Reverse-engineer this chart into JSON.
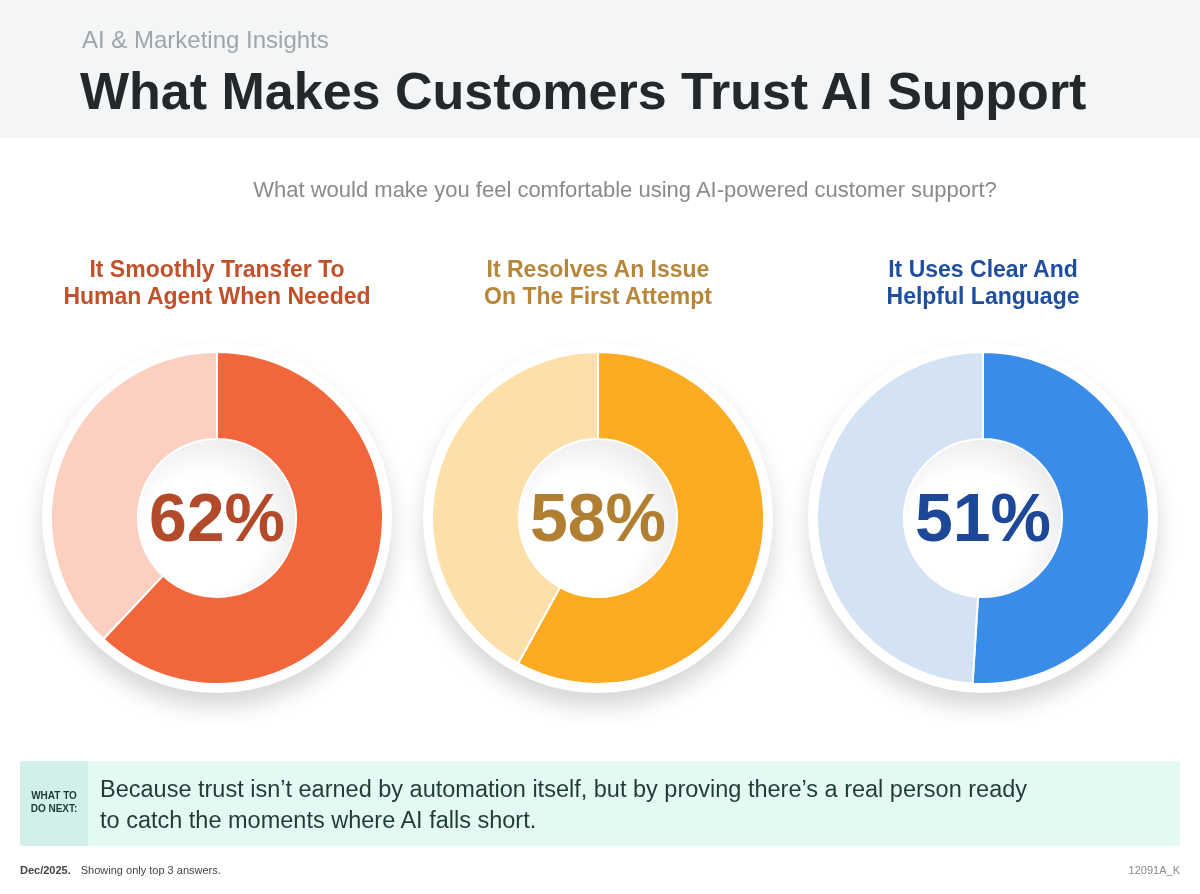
{
  "chart_data": [
    {
      "type": "other",
      "subtitle": "AI & Marketing Insights",
      "title": "What Makes Customers Trust AI Support",
      "annotations": [
        "What would make you feel comfortable using AI-powered customer support?"
      ]
    },
    {
      "type": "donut",
      "title": "It Smoothly Transfer To Human Agent When Needed",
      "categories": [
        null,
        null
      ],
      "values": [
        62,
        38
      ],
      "colors": [
        "#f1663a",
        "#fcd0c1"
      ],
      "value_labels": [
        "62%",
        null
      ]
    },
    {
      "type": "donut",
      "title": "It Resolves An Issue On The First Attempt",
      "categories": [
        null,
        null
      ],
      "values": [
        58,
        42
      ],
      "colors": [
        "#fcab23",
        "#fde0a9"
      ],
      "value_labels": [
        "58%",
        null
      ]
    },
    {
      "type": "donut",
      "title": "It Uses Clear And Helpful Language",
      "categories": [
        null,
        null
      ],
      "values": [
        51,
        49
      ],
      "colors": [
        "#3a8ce9",
        "#d4e3f4"
      ],
      "value_labels": [
        "51%",
        null
      ]
    },
    {
      "type": "other",
      "annotations": [
        "WHAT TO DO NEXT:",
        "Because trust isn’t earned by automation itself, but by proving there’s a real person ready to catch the moments where AI falls short.",
        "Dec/2025.",
        "Showing only top 3 answers.",
        "12091A_K"
      ]
    }
  ]
}
